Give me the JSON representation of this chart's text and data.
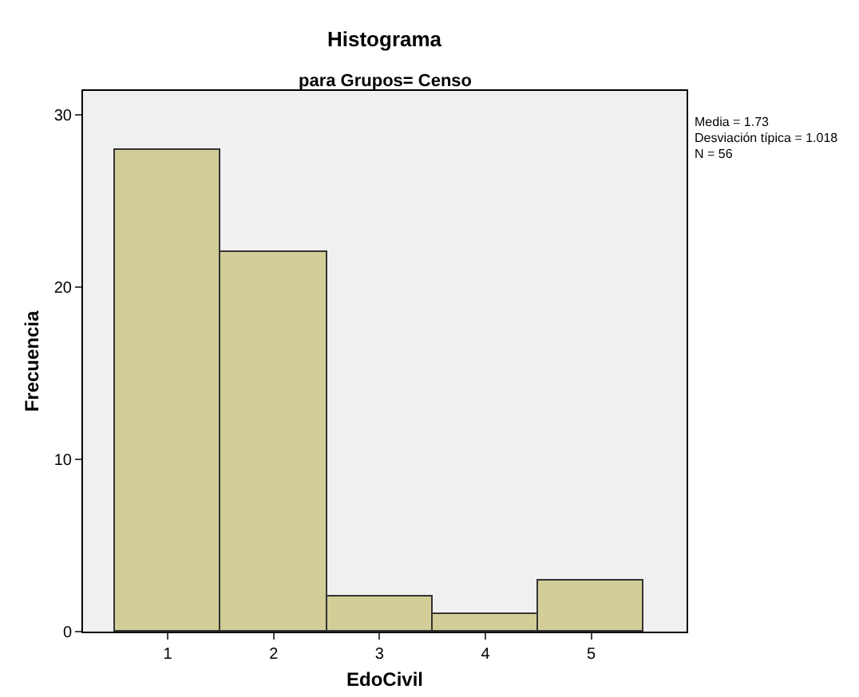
{
  "chart_data": {
    "type": "histogram",
    "title": "Histograma",
    "subtitle": "para Grupos= Censo",
    "xlabel": "EdoCivil",
    "ylabel": "Frecuencia",
    "bins": [
      0.5,
      1.5,
      2.5,
      3.5,
      4.5,
      5.5
    ],
    "values": [
      28,
      22,
      2,
      1,
      3
    ],
    "color": "#d3ce97",
    "xlim": [
      0.2,
      5.9
    ],
    "xticks": [
      1,
      2,
      3,
      4,
      5
    ],
    "ylim": [
      0,
      31.4
    ],
    "yticks": [
      0,
      10,
      20,
      30
    ],
    "annotations": [
      "Media = 1.73",
      "Desviación típica = 1.018",
      "N = 56"
    ]
  }
}
